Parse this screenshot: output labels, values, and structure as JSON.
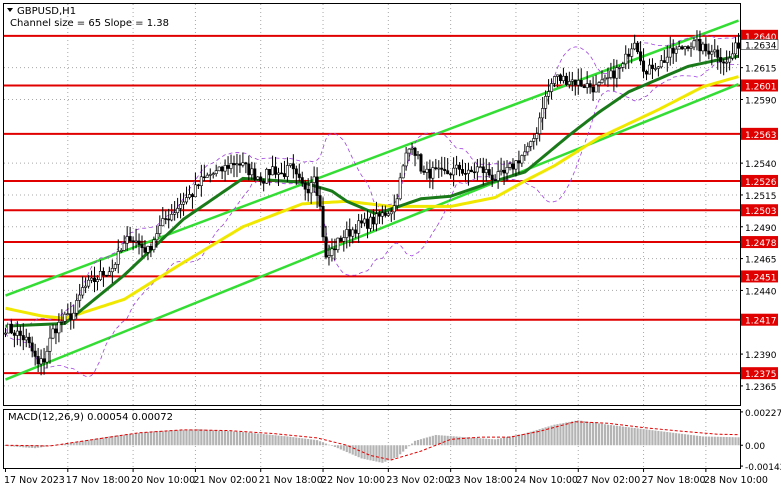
{
  "header": {
    "symbol": "GBPUSD,H1",
    "channel_info": "Channel size = 65  Slope = 1.38"
  },
  "colors": {
    "level_line": "#e00000",
    "level_label_bg": "#e00000",
    "channel": "#33dd33",
    "ma_fast": "#1a7a1a",
    "ma_slow": "#f0e800",
    "bollinger": "#a040e0",
    "bull_candle": "#ffffff",
    "bear_candle": "#000000",
    "macd_hist": "#b4b4b4",
    "macd_signal": "#e00000",
    "grid": "#a8a8a8"
  },
  "chart_data": [
    {
      "type": "candlestick",
      "title": "GBPUSD,H1",
      "subtitle": "Channel size = 65  Slope = 1.38",
      "ylim": [
        1.235,
        1.2665
      ],
      "y_ticks": [
        "1.2615",
        "1.2590",
        "1.2540",
        "1.2515",
        "1.2490",
        "1.2465",
        "1.2440",
        "1.2390",
        "1.2365"
      ],
      "x_ticks": [
        "17 Nov 2023",
        "17 Nov 18:00",
        "20 Nov 10:00",
        "21 Nov 02:00",
        "21 Nov 18:00",
        "22 Nov 10:00",
        "23 Nov 02:00",
        "23 Nov 18:00",
        "24 Nov 10:00",
        "27 Nov 02:00",
        "27 Nov 18:00",
        "28 Nov 10:00"
      ],
      "current_price": "1.2634",
      "levels": [
        "1.2640",
        "1.2601",
        "1.2563",
        "1.2526",
        "1.2503",
        "1.2478",
        "1.2451",
        "1.2417",
        "1.2375"
      ],
      "price_path": [
        [
          0,
          1.2411
        ],
        [
          4,
          1.2406
        ],
        [
          7,
          1.2401
        ],
        [
          9,
          1.2392
        ],
        [
          11,
          1.2381
        ],
        [
          13,
          1.2386
        ],
        [
          16,
          1.2408
        ],
        [
          19,
          1.2416
        ],
        [
          23,
          1.2422
        ],
        [
          26,
          1.2441
        ],
        [
          29,
          1.2446
        ],
        [
          32,
          1.2452
        ],
        [
          36,
          1.2458
        ],
        [
          39,
          1.2471
        ],
        [
          42,
          1.2483
        ],
        [
          45,
          1.2476
        ],
        [
          48,
          1.2471
        ],
        [
          51,
          1.2486
        ],
        [
          54,
          1.2496
        ],
        [
          57,
          1.2503
        ],
        [
          60,
          1.2511
        ],
        [
          63,
          1.2516
        ],
        [
          66,
          1.2526
        ],
        [
          69,
          1.2531
        ],
        [
          72,
          1.2533
        ],
        [
          75,
          1.2538
        ],
        [
          78,
          1.2541
        ],
        [
          81,
          1.2536
        ],
        [
          84,
          1.2531
        ],
        [
          87,
          1.2528
        ],
        [
          90,
          1.2536
        ],
        [
          93,
          1.2531
        ],
        [
          96,
          1.2536
        ],
        [
          98,
          1.2528
        ],
        [
          100,
          1.2522
        ],
        [
          102,
          1.2521
        ],
        [
          104,
          1.2533
        ],
        [
          106,
          1.2505
        ],
        [
          108,
          1.2464
        ],
        [
          110,
          1.2471
        ],
        [
          113,
          1.2481
        ],
        [
          116,
          1.2486
        ],
        [
          119,
          1.2491
        ],
        [
          122,
          1.2493
        ],
        [
          125,
          1.2496
        ],
        [
          128,
          1.2501
        ],
        [
          131,
          1.2506
        ],
        [
          133,
          1.2526
        ],
        [
          135,
          1.2546
        ],
        [
          137,
          1.2556
        ],
        [
          139,
          1.2543
        ],
        [
          141,
          1.2531
        ],
        [
          144,
          1.2533
        ],
        [
          147,
          1.2531
        ],
        [
          150,
          1.2533
        ],
        [
          153,
          1.2536
        ],
        [
          156,
          1.2531
        ],
        [
          159,
          1.2536
        ],
        [
          162,
          1.2533
        ],
        [
          165,
          1.2528
        ],
        [
          168,
          1.2531
        ],
        [
          171,
          1.2538
        ],
        [
          174,
          1.2546
        ],
        [
          177,
          1.2553
        ],
        [
          179,
          1.2566
        ],
        [
          181,
          1.2586
        ],
        [
          183,
          1.2596
        ],
        [
          185,
          1.2608
        ],
        [
          187,
          1.2606
        ],
        [
          190,
          1.2606
        ],
        [
          193,
          1.2603
        ],
        [
          196,
          1.2601
        ],
        [
          199,
          1.2599
        ],
        [
          202,
          1.2603
        ],
        [
          205,
          1.2611
        ],
        [
          208,
          1.2616
        ],
        [
          210,
          1.2628
        ],
        [
          212,
          1.2638
        ],
        [
          214,
          1.2624
        ],
        [
          216,
          1.2609
        ],
        [
          218,
          1.2617
        ],
        [
          221,
          1.2619
        ],
        [
          224,
          1.2626
        ],
        [
          227,
          1.2629
        ],
        [
          230,
          1.2634
        ],
        [
          233,
          1.2633
        ],
        [
          236,
          1.2628
        ],
        [
          238,
          1.263
        ],
        [
          240,
          1.2626
        ],
        [
          243,
          1.2618
        ],
        [
          245,
          1.2626
        ],
        [
          247,
          1.2634
        ]
      ],
      "ma_fast_path": [
        [
          0,
          1.2412
        ],
        [
          20,
          1.2414
        ],
        [
          40,
          1.2452
        ],
        [
          60,
          1.2496
        ],
        [
          80,
          1.2528
        ],
        [
          100,
          1.2525
        ],
        [
          110,
          1.2518
        ],
        [
          115,
          1.251
        ],
        [
          125,
          1.25
        ],
        [
          140,
          1.2512
        ],
        [
          150,
          1.2514
        ],
        [
          165,
          1.2526
        ],
        [
          175,
          1.2533
        ],
        [
          190,
          1.2562
        ],
        [
          200,
          1.258
        ],
        [
          210,
          1.2596
        ],
        [
          220,
          1.2606
        ],
        [
          230,
          1.2616
        ],
        [
          240,
          1.2621
        ],
        [
          247,
          1.2624
        ]
      ],
      "ma_slow_path": [
        [
          0,
          1.2426
        ],
        [
          12,
          1.242
        ],
        [
          20,
          1.2418
        ],
        [
          40,
          1.2433
        ],
        [
          60,
          1.2462
        ],
        [
          80,
          1.249
        ],
        [
          100,
          1.2508
        ],
        [
          115,
          1.251
        ],
        [
          130,
          1.2506
        ],
        [
          150,
          1.2506
        ],
        [
          165,
          1.2513
        ],
        [
          175,
          1.2526
        ],
        [
          185,
          1.2538
        ],
        [
          200,
          1.256
        ],
        [
          220,
          1.2582
        ],
        [
          235,
          1.26
        ],
        [
          247,
          1.2608
        ]
      ],
      "channel_lines": [
        {
          "from": [
            0,
            1.2436
          ],
          "to": [
            247,
            1.2652
          ]
        },
        {
          "from": [
            0,
            1.237
          ],
          "to": [
            247,
            1.2602
          ]
        }
      ]
    },
    {
      "type": "macd",
      "title": "MACD(12,26,9) 0.00054 0.00072",
      "y_ticks": [
        "0.00227",
        "0.00",
        "-0.00142"
      ],
      "ylim": [
        -0.00155,
        0.0024
      ],
      "histogram": [
        [
          0,
          -5e-05
        ],
        [
          10,
          -0.0002
        ],
        [
          20,
          0.0001
        ],
        [
          35,
          0.0006
        ],
        [
          50,
          0.00095
        ],
        [
          65,
          0.0011
        ],
        [
          80,
          0.0009
        ],
        [
          95,
          0.0006
        ],
        [
          105,
          0.00035
        ],
        [
          112,
          -0.0002
        ],
        [
          120,
          -0.0009
        ],
        [
          127,
          -0.0012
        ],
        [
          132,
          -0.0008
        ],
        [
          138,
          0.0003
        ],
        [
          145,
          0.0007
        ],
        [
          155,
          0.00055
        ],
        [
          165,
          0.0004
        ],
        [
          175,
          0.0008
        ],
        [
          185,
          0.0014
        ],
        [
          193,
          0.0017
        ],
        [
          203,
          0.0014
        ],
        [
          215,
          0.0011
        ],
        [
          225,
          0.00085
        ],
        [
          235,
          0.0006
        ],
        [
          247,
          0.00054
        ]
      ],
      "signal": [
        [
          0,
          0.0
        ],
        [
          15,
          -5e-05
        ],
        [
          30,
          0.0004
        ],
        [
          45,
          0.00085
        ],
        [
          60,
          0.00105
        ],
        [
          75,
          0.001
        ],
        [
          90,
          0.0008
        ],
        [
          105,
          0.0005
        ],
        [
          115,
          0.0
        ],
        [
          123,
          -0.0007
        ],
        [
          130,
          -0.001
        ],
        [
          140,
          -0.0004
        ],
        [
          150,
          0.0004
        ],
        [
          160,
          0.00055
        ],
        [
          170,
          0.00055
        ],
        [
          180,
          0.00095
        ],
        [
          192,
          0.0016
        ],
        [
          203,
          0.0015
        ],
        [
          215,
          0.0012
        ],
        [
          228,
          0.00095
        ],
        [
          240,
          0.00075
        ],
        [
          247,
          0.00072
        ]
      ]
    }
  ]
}
